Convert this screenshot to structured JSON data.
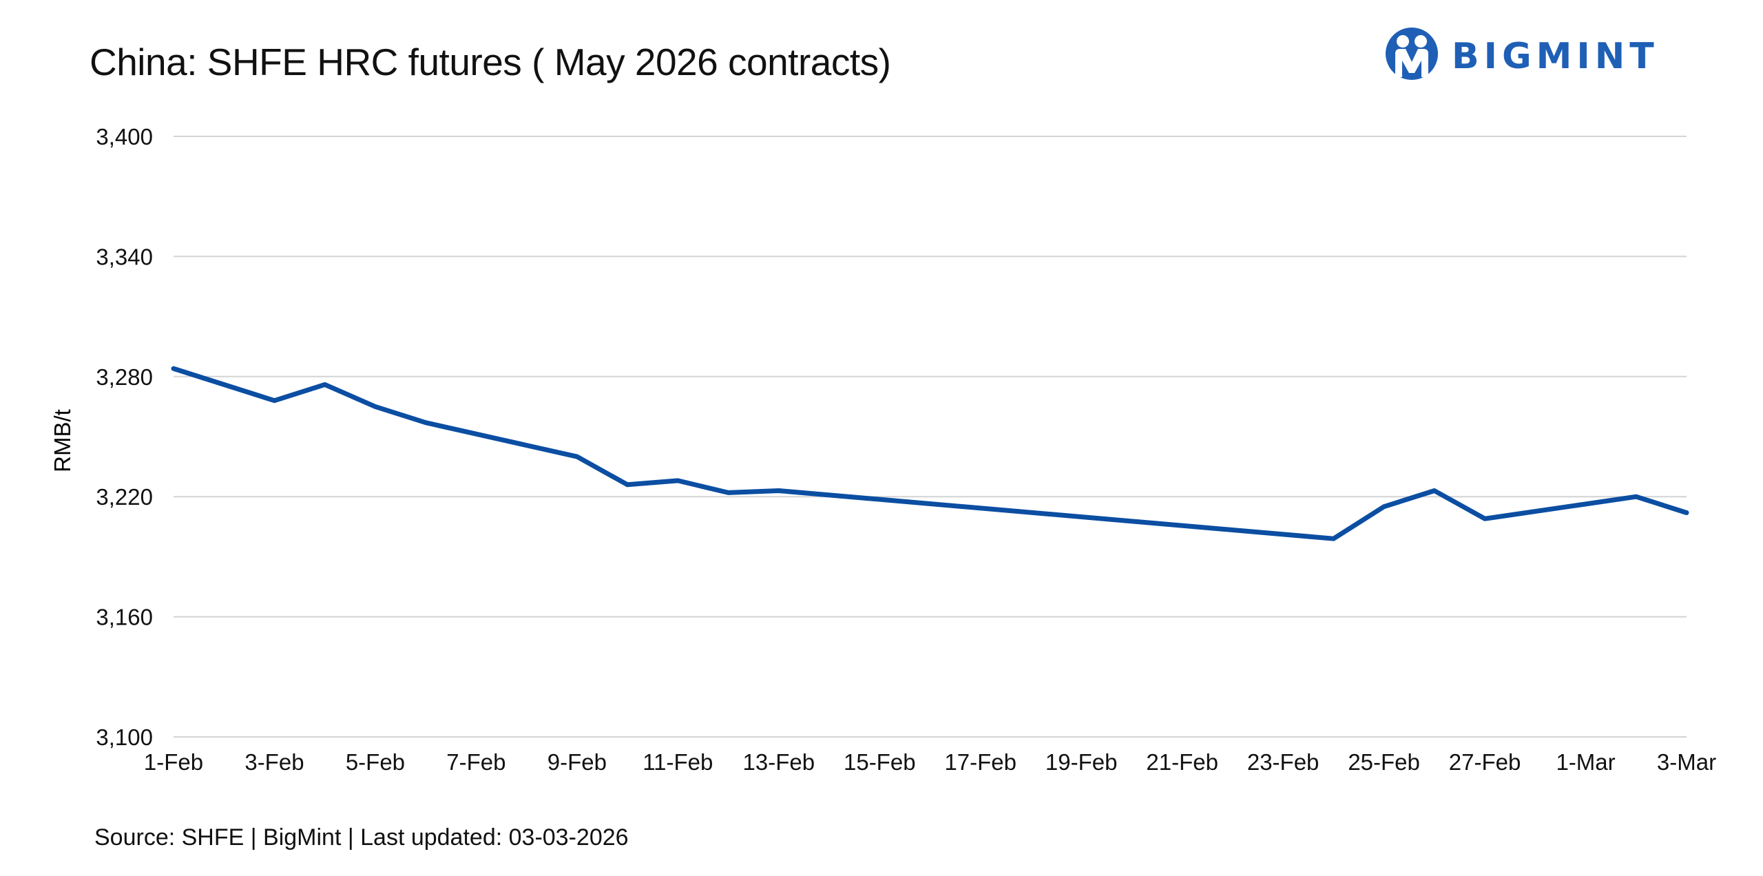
{
  "title": "China: SHFE HRC futures ( May 2026 contracts)",
  "logo_text": "BIGMINT",
  "source": "Source: SHFE | BigMint | Last updated: 03-03-2026",
  "chart_data": {
    "type": "line",
    "title": "China: SHFE HRC futures ( May 2026 contracts)",
    "xlabel": "",
    "ylabel": "RMB/t",
    "ylim": [
      3100,
      3400
    ],
    "yticks": [
      3100,
      3160,
      3220,
      3280,
      3340,
      3400
    ],
    "ytick_labels": [
      "3,100",
      "3,160",
      "3,220",
      "3,280",
      "3,340",
      "3,400"
    ],
    "xlim": [
      "1-Feb",
      "3-Mar"
    ],
    "xtick_labels": [
      "1-Feb",
      "3-Feb",
      "5-Feb",
      "7-Feb",
      "9-Feb",
      "11-Feb",
      "13-Feb",
      "15-Feb",
      "17-Feb",
      "19-Feb",
      "21-Feb",
      "23-Feb",
      "25-Feb",
      "27-Feb",
      "1-Mar",
      "3-Mar"
    ],
    "grid": true,
    "line_color": "#0b4ea2",
    "series": [
      {
        "points": [
          {
            "x": "1-Feb",
            "y": 3284
          },
          {
            "x": "3-Feb",
            "y": 3268
          },
          {
            "x": "4-Feb",
            "y": 3276
          },
          {
            "x": "5-Feb",
            "y": 3265
          },
          {
            "x": "6-Feb",
            "y": 3257
          },
          {
            "x": "9-Feb",
            "y": 3240
          },
          {
            "x": "10-Feb",
            "y": 3226
          },
          {
            "x": "11-Feb",
            "y": 3228
          },
          {
            "x": "12-Feb",
            "y": 3222
          },
          {
            "x": "13-Feb",
            "y": 3223
          },
          {
            "x": "24-Feb",
            "y": 3199
          },
          {
            "x": "25-Feb",
            "y": 3215
          },
          {
            "x": "26-Feb",
            "y": 3223
          },
          {
            "x": "27-Feb",
            "y": 3209
          },
          {
            "x": "2-Mar",
            "y": 3220
          },
          {
            "x": "3-Mar",
            "y": 3212
          }
        ]
      }
    ]
  }
}
